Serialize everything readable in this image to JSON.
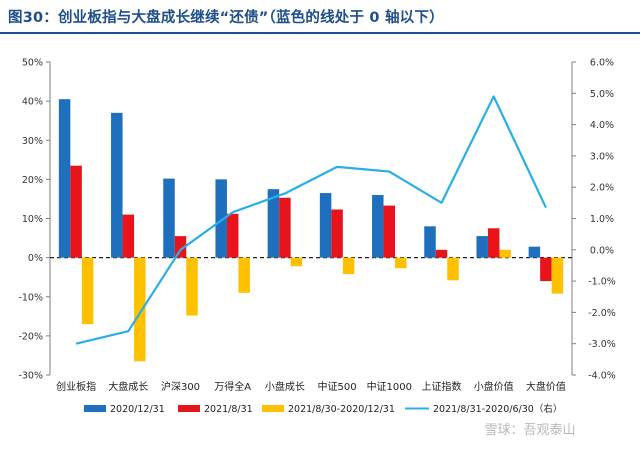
{
  "header": {
    "title": "图30：创业板指与大盘成长继续“还债”（蓝色的线处于 0 轴以下）"
  },
  "watermark": "雪球：吾观泰山",
  "colors": {
    "series_2020": "#1f6fbf",
    "series_2021": "#e8141c",
    "series_change": "#ffc000",
    "series_line": "#29aee8",
    "title": "#1f4e8c"
  },
  "chart_data": {
    "type": "bar",
    "categories": [
      "创业板指",
      "大盘成长",
      "沪深300",
      "万得全A",
      "小盘成长",
      "中证500",
      "中证1000",
      "上证指数",
      "小盘价值",
      "大盘价值"
    ],
    "y_left": {
      "ticks": [
        "50%",
        "40%",
        "30%",
        "20%",
        "10%",
        "0%",
        "-10%",
        "-20%",
        "-30%"
      ],
      "ylim": [
        -30,
        50
      ]
    },
    "y_right": {
      "ticks": [
        "6.0%",
        "5.0%",
        "4.0%",
        "3.0%",
        "2.0%",
        "1.0%",
        "0.0%",
        "-1.0%",
        "-2.0%",
        "-3.0%",
        "-4.0%"
      ],
      "ylim": [
        -4,
        6
      ]
    },
    "zero_line": {
      "value": 0,
      "style": "dashed"
    },
    "grid": false,
    "legend_position": "bottom",
    "series": [
      {
        "name": "2020/12/31",
        "axis": "left",
        "type": "bar",
        "values": [
          40.5,
          37,
          20.2,
          20,
          17.5,
          16.5,
          16,
          8,
          5.5,
          2.8
        ]
      },
      {
        "name": "2021/8/31",
        "axis": "left",
        "type": "bar",
        "values": [
          23.5,
          11,
          5.5,
          11.2,
          15.3,
          12.3,
          13.3,
          2,
          7.5,
          -6
        ]
      },
      {
        "name": "2021/8/30-2020/12/31",
        "axis": "left",
        "type": "bar",
        "values": [
          -17,
          -26.5,
          -14.8,
          -9,
          -2.2,
          -4.2,
          -2.7,
          -5.8,
          2,
          -9.2
        ]
      },
      {
        "name": "2021/8/31-2020/6/30（右）",
        "axis": "right",
        "type": "line",
        "values": [
          -3,
          -2.6,
          0,
          1.2,
          1.8,
          2.65,
          2.5,
          1.5,
          4.9,
          1.35
        ]
      }
    ]
  }
}
